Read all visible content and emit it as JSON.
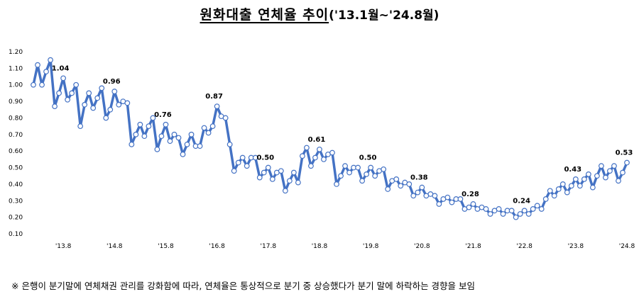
{
  "title": {
    "main": "원화대출 연체율 추이",
    "period": "('13.1월~'24.8월)"
  },
  "note": "※ 은행이 분기말에 연체채권 관리를 강화함에 따라, 연체율은 통상적으로 분기 중 상승했다가 분기 말에 하락하는 경향을 보임",
  "chart_data": {
    "type": "line",
    "title": "원화대출 연체율 추이('13.1월~'24.8월)",
    "ylim": [
      0.1,
      1.2
    ],
    "yticks": [
      "0.10",
      "0.20",
      "0.30",
      "0.40",
      "0.50",
      "0.60",
      "0.70",
      "0.80",
      "0.90",
      "1.00",
      "1.10",
      "1.20"
    ],
    "xtick_labels": [
      "'13.8",
      "'14.8",
      "'15.8",
      "'16.8",
      "'17.8",
      "'18.8",
      "'19.8",
      "'20.8",
      "'21.8",
      "'22.8",
      "'23.8",
      "'24.8"
    ],
    "grid": false,
    "series": [
      {
        "color": "#4472c4",
        "marker": "open-circle",
        "x": [
          "2013.01",
          "2013.02",
          "2013.03",
          "2013.04",
          "2013.05",
          "2013.06",
          "2013.07",
          "2013.08",
          "2013.09",
          "2013.10",
          "2013.11",
          "2013.12",
          "2014.01",
          "2014.02",
          "2014.03",
          "2014.04",
          "2014.05",
          "2014.06",
          "2014.07",
          "2014.08",
          "2014.09",
          "2014.10",
          "2014.11",
          "2014.12",
          "2015.01",
          "2015.02",
          "2015.03",
          "2015.04",
          "2015.05",
          "2015.06",
          "2015.07",
          "2015.08",
          "2015.09",
          "2015.10",
          "2015.11",
          "2015.12",
          "2016.01",
          "2016.02",
          "2016.03",
          "2016.04",
          "2016.05",
          "2016.06",
          "2016.07",
          "2016.08",
          "2016.09",
          "2016.10",
          "2016.11",
          "2016.12",
          "2017.01",
          "2017.02",
          "2017.03",
          "2017.04",
          "2017.05",
          "2017.06",
          "2017.07",
          "2017.08",
          "2017.09",
          "2017.10",
          "2017.11",
          "2017.12",
          "2018.01",
          "2018.02",
          "2018.03",
          "2018.04",
          "2018.05",
          "2018.06",
          "2018.07",
          "2018.08",
          "2018.09",
          "2018.10",
          "2018.11",
          "2018.12",
          "2019.01",
          "2019.02",
          "2019.03",
          "2019.04",
          "2019.05",
          "2019.06",
          "2019.07",
          "2019.08",
          "2019.09",
          "2019.10",
          "2019.11",
          "2019.12",
          "2020.01",
          "2020.02",
          "2020.03",
          "2020.04",
          "2020.05",
          "2020.06",
          "2020.07",
          "2020.08",
          "2020.09",
          "2020.10",
          "2020.11",
          "2020.12",
          "2021.01",
          "2021.02",
          "2021.03",
          "2021.04",
          "2021.05",
          "2021.06",
          "2021.07",
          "2021.08",
          "2021.09",
          "2021.10",
          "2021.11",
          "2021.12",
          "2022.01",
          "2022.02",
          "2022.03",
          "2022.04",
          "2022.05",
          "2022.06",
          "2022.07",
          "2022.08",
          "2022.09",
          "2022.10",
          "2022.11",
          "2022.12",
          "2023.01",
          "2023.02",
          "2023.03",
          "2023.04",
          "2023.05",
          "2023.06",
          "2023.07",
          "2023.08",
          "2023.09",
          "2023.10",
          "2023.11",
          "2023.12",
          "2024.01",
          "2024.02",
          "2024.03",
          "2024.04",
          "2024.05",
          "2024.06",
          "2024.07",
          "2024.08"
        ],
        "values": [
          1.0,
          1.12,
          1.0,
          1.08,
          1.15,
          0.87,
          0.95,
          1.04,
          0.91,
          0.95,
          1.0,
          0.75,
          0.88,
          0.95,
          0.86,
          0.92,
          0.98,
          0.8,
          0.85,
          0.96,
          0.88,
          0.9,
          0.89,
          0.64,
          0.7,
          0.76,
          0.69,
          0.75,
          0.8,
          0.61,
          0.69,
          0.76,
          0.66,
          0.7,
          0.68,
          0.58,
          0.64,
          0.7,
          0.63,
          0.63,
          0.74,
          0.71,
          0.75,
          0.87,
          0.81,
          0.8,
          0.64,
          0.48,
          0.53,
          0.56,
          0.51,
          0.56,
          0.56,
          0.44,
          0.47,
          0.5,
          0.43,
          0.47,
          0.48,
          0.36,
          0.42,
          0.47,
          0.41,
          0.57,
          0.62,
          0.51,
          0.56,
          0.61,
          0.55,
          0.58,
          0.59,
          0.4,
          0.45,
          0.51,
          0.47,
          0.5,
          0.5,
          0.42,
          0.46,
          0.5,
          0.45,
          0.48,
          0.49,
          0.37,
          0.42,
          0.43,
          0.39,
          0.41,
          0.4,
          0.33,
          0.35,
          0.38,
          0.33,
          0.34,
          0.33,
          0.28,
          0.31,
          0.32,
          0.29,
          0.31,
          0.31,
          0.25,
          0.26,
          0.28,
          0.25,
          0.26,
          0.25,
          0.22,
          0.24,
          0.25,
          0.22,
          0.24,
          0.24,
          0.2,
          0.22,
          0.24,
          0.22,
          0.25,
          0.27,
          0.25,
          0.31,
          0.36,
          0.33,
          0.37,
          0.4,
          0.35,
          0.39,
          0.43,
          0.39,
          0.43,
          0.46,
          0.38,
          0.45,
          0.51,
          0.44,
          0.48,
          0.51,
          0.42,
          0.47,
          0.53
        ]
      }
    ],
    "annotations": [
      {
        "x": "2013.08",
        "label": "1.04"
      },
      {
        "x": "2014.08",
        "label": "0.96"
      },
      {
        "x": "2015.08",
        "label": "0.76"
      },
      {
        "x": "2016.08",
        "label": "0.87"
      },
      {
        "x": "2017.08",
        "label": "0.50"
      },
      {
        "x": "2018.08",
        "label": "0.61"
      },
      {
        "x": "2019.08",
        "label": "0.50"
      },
      {
        "x": "2020.08",
        "label": "0.38"
      },
      {
        "x": "2021.08",
        "label": "0.28"
      },
      {
        "x": "2022.08",
        "label": "0.24"
      },
      {
        "x": "2023.08",
        "label": "0.43"
      },
      {
        "x": "2024.08",
        "label": "0.53"
      }
    ]
  }
}
